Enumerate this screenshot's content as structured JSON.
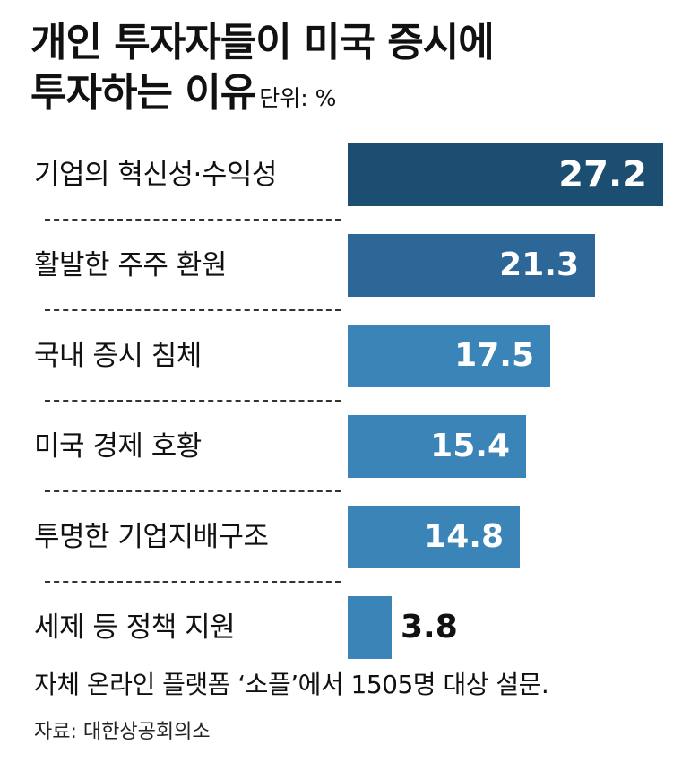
{
  "chart_data": {
    "type": "bar",
    "orientation": "horizontal",
    "title_line1": "개인 투자자들이 미국 증시에",
    "title_line2": "투자하는 이유",
    "unit": "단위: %",
    "categories": [
      "기업의 혁신성·수익성",
      "활발한 주주 환원",
      "국내 증시 침체",
      "미국 경제 호황",
      "투명한 기업지배구조",
      "세제 등 정책 지원"
    ],
    "values": [
      27.2,
      21.3,
      17.5,
      15.4,
      14.8,
      3.8
    ],
    "value_labels": [
      "27.2",
      "21.3",
      "17.5",
      "15.4",
      "14.8",
      "3.8"
    ],
    "bar_colors": [
      "#1c4e72",
      "#2c6798",
      "#3b84b8",
      "#3b84b8",
      "#3b84b8",
      "#3b84b8"
    ],
    "xlim": [
      0,
      27.2
    ],
    "grid": false,
    "legend": "none"
  },
  "footnote": "자체 온라인 플랫폼 ‘소플’에서 1505명 대상 설문.",
  "source": "자료: 대한상공회의소"
}
